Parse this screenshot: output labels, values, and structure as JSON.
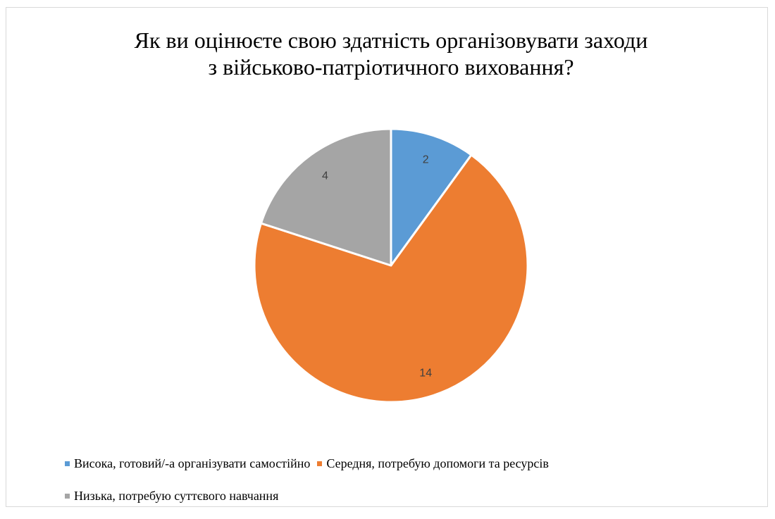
{
  "chart_data": {
    "type": "pie",
    "title_lines": [
      "Як ви оцінюєте свою здатність організовувати заходи",
      "з військово-патріотичного виховання?"
    ],
    "categories": [
      "Висока, готовий/-а організувати самостійно",
      "Середня, потребую допомоги та ресурсів",
      "Низька, потребую суттєвого навчання"
    ],
    "values": [
      2,
      14,
      4
    ],
    "data_labels": [
      "2",
      "14",
      "4"
    ],
    "colors": [
      "#5b9bd5",
      "#ed7d31",
      "#a5a5a5"
    ],
    "start_angle_deg": 0,
    "direction": "clockwise",
    "legend_position": "bottom"
  }
}
